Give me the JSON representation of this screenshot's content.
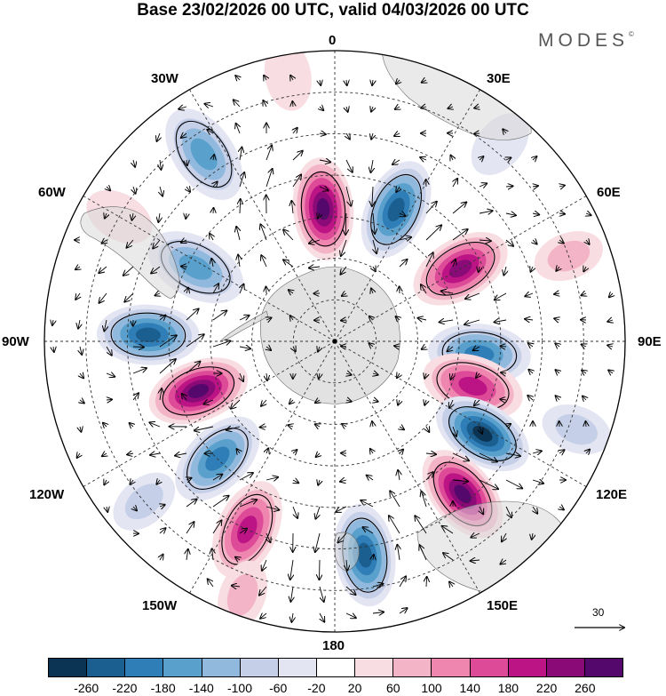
{
  "title": "Base 23/02/2026 00 UTC, valid 04/03/2026 00 UTC",
  "brand": "MODES",
  "brand_mark": "©",
  "longitudes": {
    "top": "0",
    "bottom": "180",
    "left": "90W",
    "right": "90E",
    "nw_upper": "30W",
    "nw_lower": "60W",
    "ne_upper": "30E",
    "ne_lower": "60E",
    "sw_upper": "120W",
    "sw_lower": "150W",
    "se_upper": "120E",
    "se_lower": "150E"
  },
  "reference_vector": "30",
  "colors": {
    "ocean_bg": "#ffffff",
    "land": "#d8d8d8",
    "colorbar": [
      "#0b3353",
      "#1a5f8f",
      "#2f7eb7",
      "#5aa0cc",
      "#90b9dd",
      "#c5cfe8",
      "#e4e5f2",
      "#ffffff",
      "#f8dde3",
      "#f4b4c8",
      "#ee86b0",
      "#dd4b98",
      "#bd1485",
      "#8a0a77",
      "#55086c"
    ]
  },
  "colorbar_labels": [
    "-260",
    "-220",
    "-180",
    "-140",
    "-100",
    "-60",
    "-20",
    "20",
    "60",
    "100",
    "140",
    "180",
    "220",
    "260"
  ],
  "anomalies": [
    {
      "v": 260,
      "lon": -5,
      "lat": -58
    },
    {
      "v": -210,
      "lon": 25,
      "lat": -55
    },
    {
      "v": 230,
      "lon": 60,
      "lat": -55
    },
    {
      "v": -190,
      "lon": 95,
      "lat": -55
    },
    {
      "v": 200,
      "lon": 108,
      "lat": -55
    },
    {
      "v": -280,
      "lon": 122,
      "lat": -48
    },
    {
      "v": 250,
      "lon": 140,
      "lat": -42
    },
    {
      "v": -220,
      "lon": 172,
      "lat": -38
    },
    {
      "v": 200,
      "lon": 205,
      "lat": -40
    },
    {
      "v": -180,
      "lon": 225,
      "lat": -50
    },
    {
      "v": 250,
      "lon": 250,
      "lat": -55
    },
    {
      "v": -210,
      "lon": 272,
      "lat": -45
    },
    {
      "v": -130,
      "lon": 298,
      "lat": -52
    },
    {
      "v": -150,
      "lon": 325,
      "lat": -35
    },
    {
      "v": 40,
      "lon": 300,
      "lat": -30
    },
    {
      "v": -60,
      "lon": 230,
      "lat": -30
    },
    {
      "v": 60,
      "lon": 200,
      "lat": -25
    },
    {
      "v": -50,
      "lon": 110,
      "lat": -28
    },
    {
      "v": 50,
      "lon": 70,
      "lat": -30
    },
    {
      "v": -40,
      "lon": 40,
      "lat": -28
    },
    {
      "v": 40,
      "lon": 350,
      "lat": -25
    }
  ]
}
